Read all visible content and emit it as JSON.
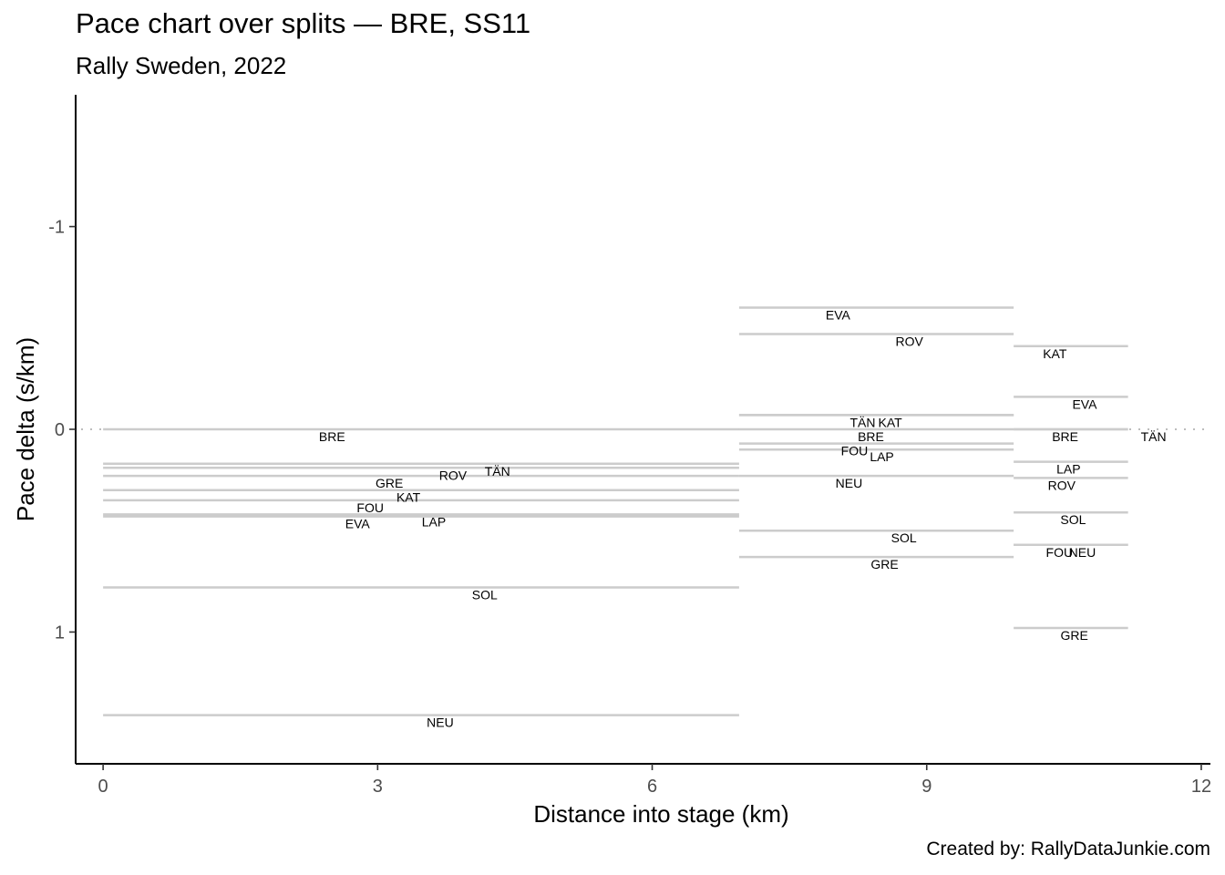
{
  "title": "Pace chart over splits — BRE, SS11",
  "subtitle": "Rally Sweden, 2022",
  "caption": "Created by: RallyDataJunkie.com",
  "chart_data": {
    "type": "line",
    "title": "Pace chart over splits — BRE, SS11",
    "subtitle": "Rally Sweden, 2022",
    "xlabel": "Distance into stage (km)",
    "ylabel": "Pace delta (s/km)",
    "xlim": [
      -0.3,
      12.1
    ],
    "ylim": [
      1.65,
      -1.65
    ],
    "y_reversed": true,
    "xticks": [
      0,
      3,
      6,
      9,
      12
    ],
    "yticks": [
      -1,
      0,
      1
    ],
    "reference_line": {
      "y": 0,
      "style": "dotted"
    },
    "grid": false,
    "splits": [
      {
        "start": 0,
        "end": 6.95,
        "drivers": [
          {
            "name": "BRE",
            "value": 0.0
          },
          {
            "name": "TÄN",
            "value": 0.17
          },
          {
            "name": "ROV",
            "value": 0.19
          },
          {
            "name": "GRE",
            "value": 0.23
          },
          {
            "name": "KAT",
            "value": 0.3
          },
          {
            "name": "FOU",
            "value": 0.35
          },
          {
            "name": "LAP",
            "value": 0.42
          },
          {
            "name": "EVA",
            "value": 0.43
          },
          {
            "name": "SOL",
            "value": 0.78
          },
          {
            "name": "NEU",
            "value": 1.41
          }
        ]
      },
      {
        "start": 6.95,
        "end": 9.95,
        "drivers": [
          {
            "name": "EVA",
            "value": -0.6
          },
          {
            "name": "ROV",
            "value": -0.47
          },
          {
            "name": "KAT",
            "value": -0.07
          },
          {
            "name": "TÄN",
            "value": -0.07
          },
          {
            "name": "BRE",
            "value": 0.0
          },
          {
            "name": "FOU",
            "value": 0.07
          },
          {
            "name": "LAP",
            "value": 0.1
          },
          {
            "name": "NEU",
            "value": 0.23
          },
          {
            "name": "SOL",
            "value": 0.5
          },
          {
            "name": "GRE",
            "value": 0.63
          }
        ]
      },
      {
        "start": 9.95,
        "end": 11.2,
        "drivers": [
          {
            "name": "KAT",
            "value": -0.41
          },
          {
            "name": "EVA",
            "value": -0.16
          },
          {
            "name": "TÄN",
            "value": 0.0
          },
          {
            "name": "BRE",
            "value": 0.0
          },
          {
            "name": "LAP",
            "value": 0.16
          },
          {
            "name": "ROV",
            "value": 0.24
          },
          {
            "name": "SOL",
            "value": 0.41
          },
          {
            "name": "FOU",
            "value": 0.57
          },
          {
            "name": "NEU",
            "value": 0.57
          },
          {
            "name": "GRE",
            "value": 0.98
          }
        ]
      }
    ]
  }
}
